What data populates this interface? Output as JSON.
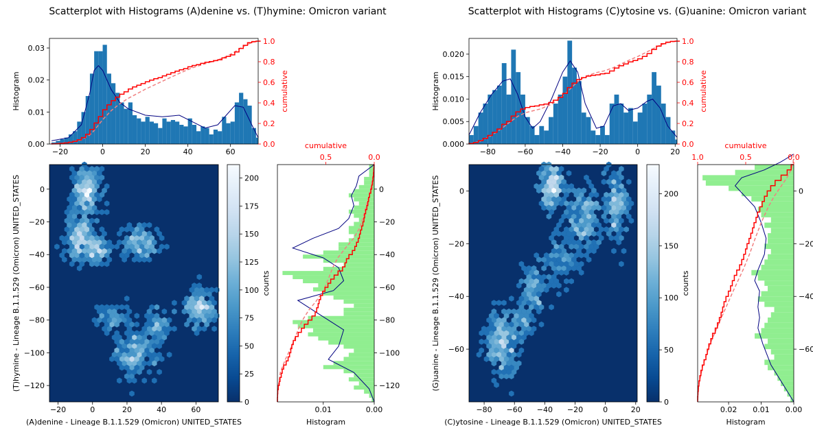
{
  "chart_data": [
    {
      "type": "scatter",
      "subtype": "hexbin with marginal histograms",
      "title": "Scatterplot with Histograms (A)denine vs. (T)hymine: Omicron variant",
      "xlabel": "(A)denine - Lineage B.1.1.529 (Omicron) UNITED_STATES",
      "ylabel": "(T)hymine - Lineage B.1.1.529 (Omicron) UNITED_STATES",
      "xlim": [
        -25,
        73
      ],
      "ylim": [
        -130,
        15
      ],
      "xticks": [
        -20,
        0,
        20,
        40,
        60
      ],
      "yticks": [
        -120,
        -100,
        -80,
        -60,
        -40,
        -20,
        0
      ],
      "colorbar": {
        "label": "counts",
        "min": 0,
        "max": 212,
        "ticks": [
          0,
          25,
          50,
          75,
          100,
          125,
          150,
          175,
          200
        ]
      },
      "top_histogram": {
        "ylabel": "Histogram",
        "ylim": [
          0,
          0.033
        ],
        "yticks": [
          0.0,
          0.01,
          0.02,
          0.03
        ],
        "cumulative_label": "cumulative",
        "cumulative_ticks": [
          0.0,
          0.2,
          0.4,
          0.6,
          0.8,
          1.0
        ],
        "bin_start": -24,
        "bin_width": 2,
        "density": [
          0.0005,
          0.001,
          0.0015,
          0.002,
          0.003,
          0.004,
          0.007,
          0.01,
          0.015,
          0.022,
          0.029,
          0.029,
          0.031,
          0.022,
          0.019,
          0.016,
          0.013,
          0.011,
          0.013,
          0.009,
          0.008,
          0.007,
          0.0085,
          0.007,
          0.0065,
          0.005,
          0.008,
          0.007,
          0.0075,
          0.007,
          0.006,
          0.0055,
          0.008,
          0.006,
          0.004,
          0.0055,
          0.005,
          0.003,
          0.0045,
          0.004,
          0.0085,
          0.0065,
          0.007,
          0.013,
          0.016,
          0.014,
          0.012,
          0.005,
          0.002
        ],
        "kde": [
          [
            -24,
            0.001
          ],
          [
            -16,
            0.002
          ],
          [
            -10,
            0.006
          ],
          [
            -6,
            0.016
          ],
          [
            -4,
            0.023
          ],
          [
            -2,
            0.0245
          ],
          [
            0,
            0.023
          ],
          [
            4,
            0.017
          ],
          [
            8,
            0.013
          ],
          [
            12,
            0.011
          ],
          [
            20,
            0.009
          ],
          [
            28,
            0.0085
          ],
          [
            36,
            0.009
          ],
          [
            42,
            0.007
          ],
          [
            48,
            0.005
          ],
          [
            54,
            0.006
          ],
          [
            58,
            0.009
          ],
          [
            62,
            0.012
          ],
          [
            66,
            0.0115
          ],
          [
            70,
            0.006
          ],
          [
            73,
            0.002
          ]
        ]
      },
      "right_histogram": {
        "xlabel": "Histogram",
        "xticks": [
          0.01,
          0.0
        ],
        "cumulative_label": "cumulative",
        "cumulative_ticks": [
          0.5,
          0.0
        ],
        "bin_start": -130,
        "bin_width": 2.5,
        "density": [
          0.0005,
          0.001,
          0.002,
          0.004,
          0.003,
          0.005,
          0.004,
          0.006,
          0.01,
          0.008,
          0.006,
          0.005,
          0.004,
          0.006,
          0.009,
          0.011,
          0.013,
          0.012,
          0.015,
          0.016,
          0.013,
          0.006,
          0.006,
          0.004,
          0.006,
          0.008,
          0.01,
          0.012,
          0.011,
          0.014,
          0.016,
          0.018,
          0.01,
          0.006,
          0.01,
          0.014,
          0.01,
          0.007,
          0.007,
          0.005,
          0.004,
          0.005,
          0.005,
          0.004,
          0.003,
          0.004,
          0.005,
          0.004,
          0.003,
          0.004,
          0.005,
          0.004,
          0.003,
          0.002,
          0.002,
          0.001,
          0.001,
          0.001
        ],
        "kde": [
          [
            -130,
            0.0
          ],
          [
            -122,
            0.001
          ],
          [
            -112,
            0.004
          ],
          [
            -104,
            0.009
          ],
          [
            -96,
            0.007
          ],
          [
            -86,
            0.006
          ],
          [
            -80,
            0.009
          ],
          [
            -74,
            0.012
          ],
          [
            -68,
            0.015
          ],
          [
            -62,
            0.008
          ],
          [
            -56,
            0.006
          ],
          [
            -48,
            0.007
          ],
          [
            -42,
            0.01
          ],
          [
            -36,
            0.016
          ],
          [
            -30,
            0.012
          ],
          [
            -24,
            0.007
          ],
          [
            -18,
            0.005
          ],
          [
            -10,
            0.004
          ],
          [
            -4,
            0.0045
          ],
          [
            2,
            0.0035
          ],
          [
            8,
            0.003
          ],
          [
            15,
            0.0
          ]
        ]
      }
    },
    {
      "type": "scatter",
      "subtype": "hexbin with marginal histograms",
      "title": "Scatterplot with Histograms (C)ytosine vs. (G)uanine: Omicron variant",
      "xlabel": "(C)ytosine - Lineage B.1.1.529 (Omicron) UNITED_STATES",
      "ylabel": "(G)uanine - Lineage B.1.1.529 (Omicron) UNITED_STATES",
      "xlim": [
        -90,
        21
      ],
      "ylim": [
        -80,
        10
      ],
      "xticks": [
        -80,
        -60,
        -40,
        -20,
        0,
        20
      ],
      "yticks": [
        -60,
        -40,
        -20,
        0
      ],
      "colorbar": {
        "label": "counts",
        "min": 0,
        "max": 228,
        "ticks": [
          0,
          50,
          100,
          150,
          200
        ]
      },
      "top_histogram": {
        "ylabel": "Histogram",
        "ylim": [
          0,
          0.0235
        ],
        "yticks": [
          0.0,
          0.005,
          0.01,
          0.015,
          0.02
        ],
        "cumulative_label": "cumulative",
        "cumulative_ticks": [
          0.0,
          0.2,
          0.4,
          0.6,
          0.8,
          1.0
        ],
        "bin_start": -90,
        "bin_width": 2.5,
        "density": [
          0.002,
          0.004,
          0.007,
          0.009,
          0.011,
          0.012,
          0.013,
          0.018,
          0.011,
          0.021,
          0.016,
          0.011,
          0.006,
          0.004,
          0.002,
          0.004,
          0.003,
          0.006,
          0.009,
          0.011,
          0.015,
          0.023,
          0.017,
          0.014,
          0.007,
          0.006,
          0.003,
          0.002,
          0.004,
          0.002,
          0.009,
          0.011,
          0.009,
          0.007,
          0.008,
          0.005,
          0.007,
          0.009,
          0.011,
          0.016,
          0.013,
          0.009,
          0.006,
          0.003,
          0.001
        ],
        "kde": [
          [
            -90,
            0.002
          ],
          [
            -84,
            0.007
          ],
          [
            -78,
            0.011
          ],
          [
            -72,
            0.014
          ],
          [
            -68,
            0.0145
          ],
          [
            -64,
            0.011
          ],
          [
            -60,
            0.006
          ],
          [
            -56,
            0.0035
          ],
          [
            -52,
            0.005
          ],
          [
            -46,
            0.01
          ],
          [
            -40,
            0.016
          ],
          [
            -36,
            0.0185
          ],
          [
            -32,
            0.016
          ],
          [
            -28,
            0.009
          ],
          [
            -22,
            0.0035
          ],
          [
            -18,
            0.004
          ],
          [
            -13,
            0.0085
          ],
          [
            -9,
            0.009
          ],
          [
            -5,
            0.0075
          ],
          [
            0,
            0.008
          ],
          [
            5,
            0.0095
          ],
          [
            8,
            0.01
          ],
          [
            12,
            0.008
          ],
          [
            16,
            0.004
          ],
          [
            21,
            0.0015
          ]
        ]
      },
      "right_histogram": {
        "xlabel": "Histogram",
        "xticks": [
          0.02,
          0.01,
          0.0
        ],
        "cumulative_label": "cumulative",
        "cumulative_ticks": [
          1.0,
          0.5,
          0.0
        ],
        "bin_start": -80,
        "bin_width": 2,
        "density": [
          0.001,
          0.002,
          0.003,
          0.004,
          0.005,
          0.006,
          0.008,
          0.009,
          0.006,
          0.007,
          0.009,
          0.008,
          0.012,
          0.01,
          0.009,
          0.008,
          0.007,
          0.006,
          0.009,
          0.011,
          0.01,
          0.008,
          0.009,
          0.011,
          0.013,
          0.01,
          0.009,
          0.008,
          0.007,
          0.009,
          0.008,
          0.008,
          0.007,
          0.009,
          0.007,
          0.01,
          0.011,
          0.01,
          0.013,
          0.016,
          0.02,
          0.027,
          0.028,
          0.018,
          0.012
        ],
        "kde": [
          [
            -80,
            0.0
          ],
          [
            -74,
            0.003
          ],
          [
            -66,
            0.007
          ],
          [
            -58,
            0.0095
          ],
          [
            -52,
            0.011
          ],
          [
            -48,
            0.0105
          ],
          [
            -44,
            0.011
          ],
          [
            -38,
            0.0105
          ],
          [
            -34,
            0.012
          ],
          [
            -30,
            0.011
          ],
          [
            -24,
            0.009
          ],
          [
            -18,
            0.0085
          ],
          [
            -12,
            0.01
          ],
          [
            -6,
            0.012
          ],
          [
            -2,
            0.015
          ],
          [
            2,
            0.018
          ],
          [
            5,
            0.016
          ],
          [
            8,
            0.009
          ],
          [
            11,
            0.004
          ],
          [
            14,
            0.0
          ]
        ]
      }
    }
  ]
}
